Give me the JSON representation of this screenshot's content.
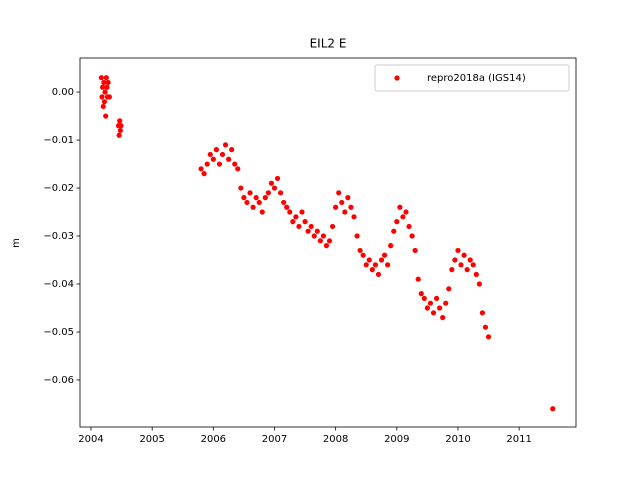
{
  "chart_data": {
    "type": "scatter",
    "title": "EIL2 E",
    "y_label": "m",
    "series": [
      {
        "name": "repro2018a (IGS14)",
        "color": "#ff0000",
        "x": [
          2004.17,
          2004.18,
          2004.19,
          2004.2,
          2004.21,
          2004.22,
          2004.23,
          2004.24,
          2004.25,
          2004.26,
          2004.27,
          2004.28,
          2004.3,
          2004.45,
          2004.46,
          2004.47,
          2004.48,
          2004.49,
          2005.8,
          2005.85,
          2005.9,
          2005.95,
          2006.0,
          2006.05,
          2006.1,
          2006.15,
          2006.2,
          2006.25,
          2006.3,
          2006.35,
          2006.4,
          2006.45,
          2006.5,
          2006.55,
          2006.6,
          2006.65,
          2006.7,
          2006.75,
          2006.8,
          2006.85,
          2006.9,
          2006.95,
          2007.0,
          2007.05,
          2007.1,
          2007.15,
          2007.2,
          2007.25,
          2007.3,
          2007.35,
          2007.4,
          2007.45,
          2007.5,
          2007.55,
          2007.6,
          2007.65,
          2007.7,
          2007.75,
          2007.8,
          2007.85,
          2007.9,
          2007.95,
          2008.0,
          2008.05,
          2008.1,
          2008.15,
          2008.2,
          2008.25,
          2008.3,
          2008.35,
          2008.4,
          2008.45,
          2008.5,
          2008.55,
          2008.6,
          2008.65,
          2008.7,
          2008.75,
          2008.8,
          2008.85,
          2008.9,
          2008.95,
          2009.0,
          2009.05,
          2009.1,
          2009.15,
          2009.2,
          2009.25,
          2009.3,
          2009.35,
          2009.4,
          2009.45,
          2009.5,
          2009.55,
          2009.6,
          2009.65,
          2009.7,
          2009.75,
          2009.8,
          2009.85,
          2009.9,
          2009.95,
          2010.0,
          2010.05,
          2010.1,
          2010.15,
          2010.2,
          2010.25,
          2010.3,
          2010.35,
          2010.4,
          2010.45,
          2010.5,
          2011.55
        ],
        "values": [
          0.003,
          -0.001,
          0.001,
          -0.003,
          0.002,
          -0.002,
          0.0,
          -0.005,
          0.003,
          0.001,
          -0.001,
          0.002,
          -0.001,
          -0.007,
          -0.009,
          -0.006,
          -0.008,
          -0.007,
          -0.016,
          -0.017,
          -0.015,
          -0.013,
          -0.014,
          -0.012,
          -0.015,
          -0.013,
          -0.011,
          -0.014,
          -0.012,
          -0.015,
          -0.016,
          -0.02,
          -0.022,
          -0.023,
          -0.021,
          -0.024,
          -0.022,
          -0.023,
          -0.025,
          -0.022,
          -0.021,
          -0.019,
          -0.02,
          -0.018,
          -0.021,
          -0.023,
          -0.024,
          -0.025,
          -0.027,
          -0.026,
          -0.028,
          -0.025,
          -0.027,
          -0.029,
          -0.028,
          -0.03,
          -0.029,
          -0.031,
          -0.03,
          -0.032,
          -0.031,
          -0.028,
          -0.024,
          -0.021,
          -0.023,
          -0.025,
          -0.022,
          -0.024,
          -0.026,
          -0.03,
          -0.033,
          -0.034,
          -0.036,
          -0.035,
          -0.037,
          -0.036,
          -0.038,
          -0.035,
          -0.034,
          -0.036,
          -0.032,
          -0.029,
          -0.027,
          -0.024,
          -0.026,
          -0.025,
          -0.028,
          -0.03,
          -0.033,
          -0.039,
          -0.042,
          -0.043,
          -0.045,
          -0.044,
          -0.046,
          -0.043,
          -0.045,
          -0.047,
          -0.044,
          -0.041,
          -0.037,
          -0.035,
          -0.033,
          -0.036,
          -0.034,
          -0.037,
          -0.035,
          -0.036,
          -0.038,
          -0.04,
          -0.046,
          -0.049,
          -0.051,
          -0.066
        ]
      }
    ],
    "xlim": [
      2003.82,
      2011.93
    ],
    "xticks": [
      2004,
      2005,
      2006,
      2007,
      2008,
      2009,
      2010,
      2011
    ],
    "ylim": [
      -0.0698,
      0.0071
    ],
    "yticks": [
      {
        "value": 0,
        "label": "0.00"
      },
      {
        "value": -0.01,
        "label": "−0.01"
      },
      {
        "value": -0.02,
        "label": "−0.02"
      },
      {
        "value": -0.03,
        "label": "−0.03"
      },
      {
        "value": -0.04,
        "label": "−0.04"
      },
      {
        "value": -0.05,
        "label": "−0.05"
      },
      {
        "value": -0.06,
        "label": "−0.06"
      }
    ],
    "legend": "upper right"
  }
}
